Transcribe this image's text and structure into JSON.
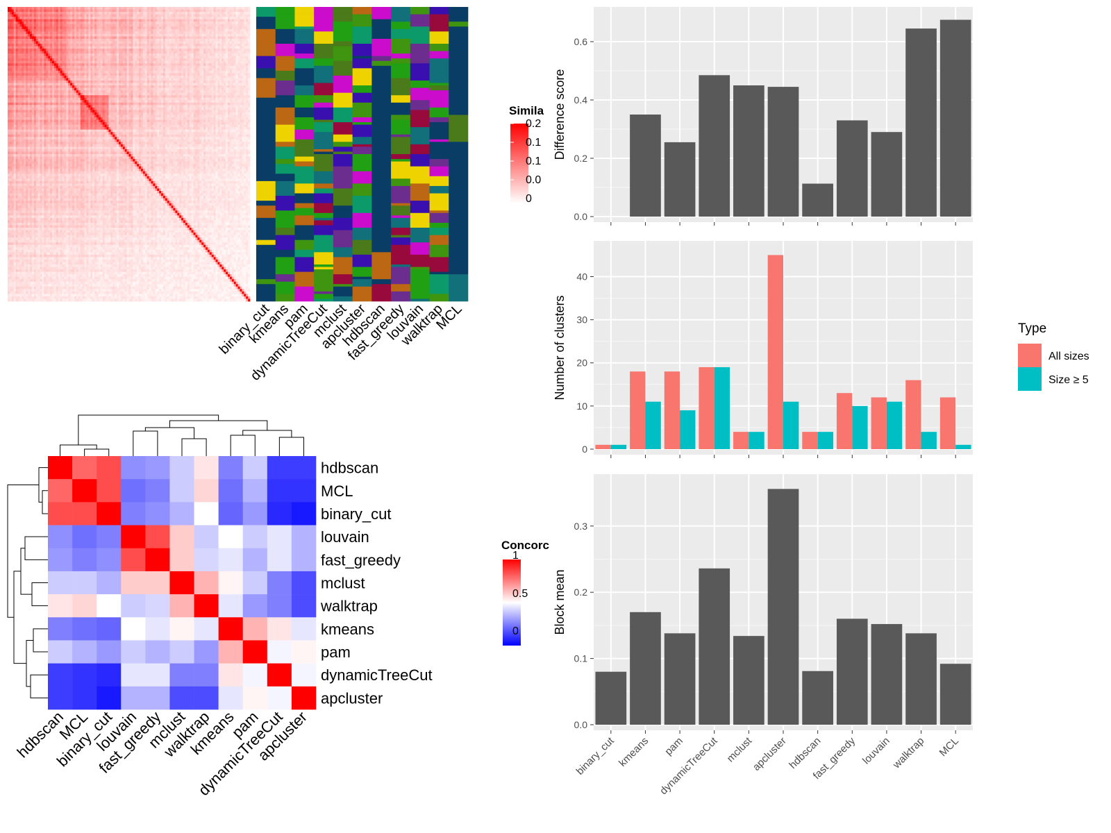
{
  "legends": {
    "similarity": {
      "title": "Simila",
      "ticks": [
        "0.2",
        "0.1",
        "0.1",
        "0.0",
        "0"
      ]
    },
    "concordance": {
      "title": "Concorc",
      "ticks": [
        "1",
        "0.5",
        "0"
      ]
    },
    "type": {
      "title": "Type",
      "items": [
        "All sizes",
        "Size ≥ 5"
      ]
    }
  },
  "colors": {
    "similarity_high": "#ff0000",
    "similarity_low": "#ffffff",
    "cluster_background": "#0a3d66",
    "bar_fill": "#595959",
    "all_sizes": "#f8766d",
    "size_ge5": "#00bfc4",
    "panel_bg": "#ebebeb",
    "conc_low": "#0000ff",
    "conc_mid": "#ffffff",
    "conc_high": "#ff0000",
    "palette": [
      "#0a3d66",
      "#eed300",
      "#bb6714",
      "#3f9410",
      "#6b2d8e",
      "#0d9a6a",
      "#cc0ccc",
      "#3a0fb0",
      "#990a3c",
      "#20a012",
      "#4a7a1a",
      "#11707a"
    ]
  },
  "chart_data": [
    {
      "type": "heatmap",
      "description_key": "cell-similarity-heatmap",
      "title": "",
      "legend_title": "Simila",
      "legend_ticks": [
        "0.2",
        "0.1",
        "0.1",
        "0.0",
        "0"
      ]
    },
    {
      "type": "heatmap",
      "description_key": "cluster-assignment-heatmap",
      "columns": [
        "binary_cut",
        "kmeans",
        "pam",
        "dynamicTreeCut",
        "mclust",
        "apcluster",
        "hdbscan",
        "fast_greedy",
        "louvain",
        "walktrap",
        "MCL"
      ]
    },
    {
      "type": "heatmap",
      "description_key": "concordance-heatmap",
      "legend_title": "Concorc",
      "legend_ticks": [
        "1",
        "0.5",
        "0"
      ],
      "rows": [
        "hdbscan",
        "MCL",
        "binary_cut",
        "louvain",
        "fast_greedy",
        "mclust",
        "walktrap",
        "kmeans",
        "pam",
        "dynamicTreeCut",
        "apcluster"
      ],
      "columns": [
        "hdbscan",
        "MCL",
        "binary_cut",
        "louvain",
        "fast_greedy",
        "mclust",
        "walktrap",
        "kmeans",
        "pam",
        "dynamicTreeCut",
        "apcluster"
      ],
      "values": [
        [
          1.0,
          0.8,
          0.85,
          0.28,
          0.3,
          0.4,
          0.55,
          0.25,
          0.4,
          0.12,
          0.12
        ],
        [
          0.8,
          1.0,
          0.85,
          0.22,
          0.25,
          0.4,
          0.58,
          0.22,
          0.35,
          0.1,
          0.1
        ],
        [
          0.85,
          0.85,
          1.0,
          0.25,
          0.28,
          0.35,
          0.5,
          0.2,
          0.3,
          0.08,
          0.05
        ],
        [
          0.28,
          0.22,
          0.25,
          1.0,
          0.85,
          0.6,
          0.4,
          0.5,
          0.4,
          0.45,
          0.35
        ],
        [
          0.3,
          0.25,
          0.28,
          0.85,
          1.0,
          0.6,
          0.42,
          0.45,
          0.35,
          0.45,
          0.35
        ],
        [
          0.4,
          0.4,
          0.35,
          0.6,
          0.6,
          1.0,
          0.65,
          0.52,
          0.4,
          0.25,
          0.15
        ],
        [
          0.55,
          0.58,
          0.5,
          0.4,
          0.42,
          0.65,
          1.0,
          0.45,
          0.3,
          0.25,
          0.15
        ],
        [
          0.25,
          0.22,
          0.2,
          0.5,
          0.45,
          0.52,
          0.45,
          1.0,
          0.65,
          0.55,
          0.45
        ],
        [
          0.4,
          0.35,
          0.3,
          0.4,
          0.35,
          0.4,
          0.3,
          0.65,
          1.0,
          0.48,
          0.52
        ],
        [
          0.12,
          0.1,
          0.08,
          0.45,
          0.45,
          0.25,
          0.25,
          0.55,
          0.48,
          1.0,
          0.48
        ],
        [
          0.12,
          0.1,
          0.05,
          0.35,
          0.35,
          0.15,
          0.15,
          0.45,
          0.52,
          0.48,
          1.0
        ]
      ]
    },
    {
      "type": "bar",
      "description_key": "difference-score",
      "categories": [
        "binary_cut",
        "kmeans",
        "pam",
        "dynamicTreeCut",
        "mclust",
        "apcluster",
        "hdbscan",
        "fast_greedy",
        "louvain",
        "walktrap",
        "MCL"
      ],
      "values": [
        0,
        0.35,
        0.255,
        0.485,
        0.45,
        0.445,
        0.113,
        0.33,
        0.29,
        0.645,
        0.675
      ],
      "ylabel": "Difference score",
      "ylim": [
        0,
        0.7
      ],
      "yticks": [
        "0.0",
        "0.2",
        "0.4",
        "0.6"
      ]
    },
    {
      "type": "bar",
      "description_key": "number-of-clusters",
      "categories": [
        "binary_cut",
        "kmeans",
        "pam",
        "dynamicTreeCut",
        "mclust",
        "apcluster",
        "hdbscan",
        "fast_greedy",
        "louvain",
        "walktrap",
        "MCL"
      ],
      "series": [
        {
          "name": "All sizes",
          "values": [
            1,
            18,
            18,
            19,
            4,
            45,
            4,
            13,
            12,
            16,
            12
          ]
        },
        {
          "name": "Size ≥ 5",
          "values": [
            1,
            11,
            9,
            19,
            4,
            11,
            4,
            10,
            11,
            4,
            1
          ]
        }
      ],
      "ylabel": "Number of clusters",
      "ylim": [
        0,
        47
      ],
      "yticks": [
        "0",
        "10",
        "20",
        "30",
        "40"
      ]
    },
    {
      "type": "bar",
      "description_key": "block-mean",
      "categories": [
        "binary_cut",
        "kmeans",
        "pam",
        "dynamicTreeCut",
        "mclust",
        "apcluster",
        "hdbscan",
        "fast_greedy",
        "louvain",
        "walktrap",
        "MCL"
      ],
      "values": [
        0.08,
        0.17,
        0.138,
        0.236,
        0.134,
        0.356,
        0.081,
        0.16,
        0.152,
        0.138,
        0.092
      ],
      "ylabel": "Block mean",
      "ylim": [
        0,
        0.37
      ],
      "yticks": [
        "0.0",
        "0.1",
        "0.2",
        "0.3"
      ]
    }
  ]
}
